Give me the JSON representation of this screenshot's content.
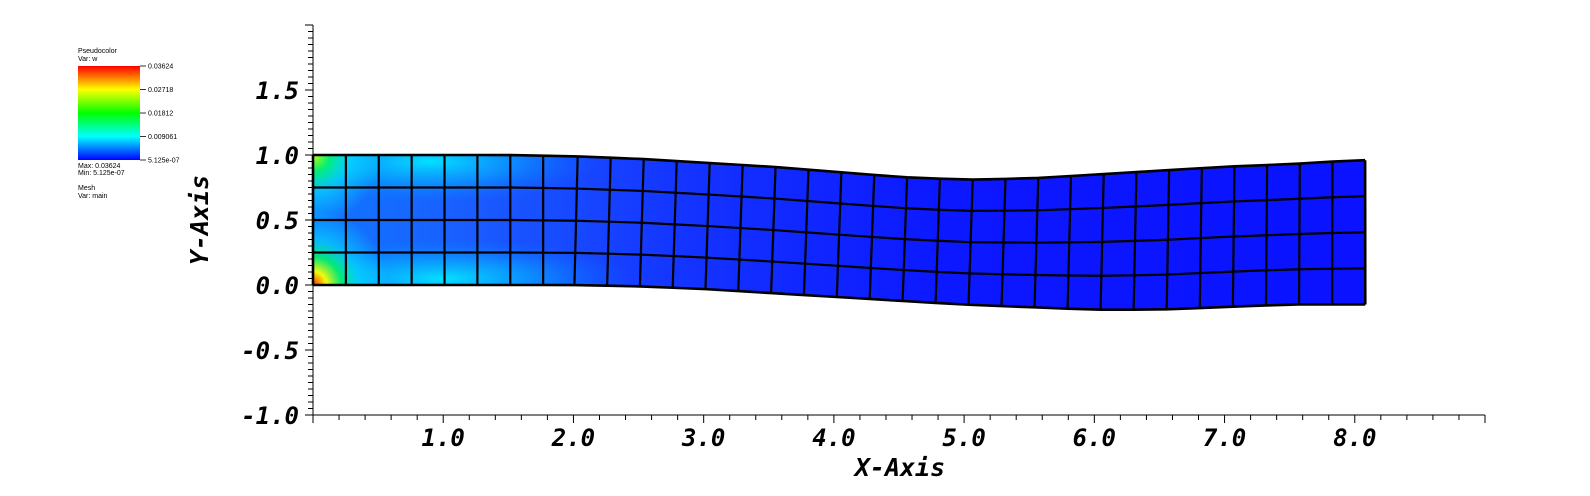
{
  "chart_data": {
    "type": "heatmap",
    "title": "",
    "xlabel": "X-Axis",
    "ylabel": "Y-Axis",
    "xlim": [
      0.0,
      9.0
    ],
    "ylim": [
      -1.0,
      2.0
    ],
    "x_ticks": [
      "1.0",
      "2.0",
      "3.0",
      "4.0",
      "5.0",
      "6.0",
      "7.0",
      "8.0"
    ],
    "y_ticks": [
      "-1.0",
      "-0.5",
      "0.0",
      "0.5",
      "1.0",
      "1.5"
    ],
    "x_tick_values": [
      1,
      2,
      3,
      4,
      5,
      6,
      7,
      8
    ],
    "y_tick_values": [
      -1,
      -0.5,
      0,
      0.5,
      1,
      1.5
    ],
    "grid": false,
    "legend": {
      "plot_type": "Pseudocolor",
      "pseudocolor_var": "Var: w",
      "colorbar_labels": [
        "0.03624",
        "0.02718",
        "0.01812",
        "0.009061",
        "5.125e-07"
      ],
      "max_label": "Max: 0.03624",
      "min_label": "Min: 5.125e-07",
      "mesh_label": "Mesh",
      "mesh_var": "Var: main",
      "placement": "top-left"
    },
    "colormap": [
      "#0000ff",
      "#00ffff",
      "#00ff00",
      "#ffff00",
      "#ff0000"
    ],
    "value_range": [
      5.125e-07,
      0.03624
    ],
    "mesh": {
      "columns": 32,
      "rows": 4,
      "x_start": 0.0,
      "x_end": 8.08,
      "bottom_edge": [
        [
          0,
          0.0
        ],
        [
          0.5,
          0.0
        ],
        [
          1.0,
          0.0
        ],
        [
          1.5,
          0.0
        ],
        [
          2.0,
          0.0
        ],
        [
          2.5,
          -0.01
        ],
        [
          3.0,
          -0.03
        ],
        [
          3.5,
          -0.06
        ],
        [
          4.0,
          -0.09
        ],
        [
          4.5,
          -0.12
        ],
        [
          5.0,
          -0.15
        ],
        [
          5.5,
          -0.17
        ],
        [
          6.0,
          -0.19
        ],
        [
          6.5,
          -0.19
        ],
        [
          7.0,
          -0.17
        ],
        [
          7.5,
          -0.15
        ],
        [
          8.08,
          -0.15
        ]
      ],
      "top_edge": [
        [
          0,
          1.0
        ],
        [
          0.5,
          1.0
        ],
        [
          1.0,
          1.0
        ],
        [
          1.5,
          1.0
        ],
        [
          2.0,
          0.99
        ],
        [
          2.5,
          0.97
        ],
        [
          3.0,
          0.94
        ],
        [
          3.5,
          0.91
        ],
        [
          4.0,
          0.87
        ],
        [
          4.5,
          0.83
        ],
        [
          5.0,
          0.81
        ],
        [
          5.5,
          0.82
        ],
        [
          6.0,
          0.85
        ],
        [
          6.5,
          0.88
        ],
        [
          7.0,
          0.91
        ],
        [
          7.5,
          0.93
        ],
        [
          8.0,
          0.96
        ]
      ],
      "hot_spots": [
        {
          "x": 0.0,
          "y": 0.0,
          "value": 0.0362
        },
        {
          "x": 0.0,
          "y": 1.0,
          "value": 0.027
        }
      ]
    }
  }
}
